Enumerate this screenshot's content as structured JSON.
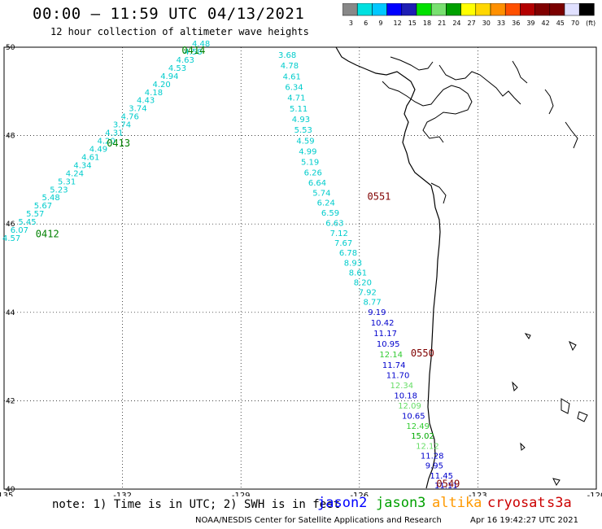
{
  "title": "00:00 – 11:59 UTC 04/13/2021",
  "subtitle": "12 hour collection of altimeter wave heights",
  "colorbar": {
    "colors": [
      "#888888",
      "#00e0e0",
      "#00c8ff",
      "#0000ff",
      "#1e1eb4",
      "#00e000",
      "#78e070",
      "#00a000",
      "#ffff00",
      "#ffd700",
      "#ff9000",
      "#ff5000",
      "#b40000",
      "#800000",
      "#7a0000",
      "#e0e0ff",
      "#000000"
    ],
    "labels": [
      "3",
      "6",
      "9",
      "12",
      "15",
      "18",
      "21",
      "24",
      "27",
      "30",
      "33",
      "36",
      "39",
      "42",
      "45",
      "70",
      "(ft)"
    ]
  },
  "axes": {
    "lon_labels": [
      "-135",
      "-132",
      "-129",
      "-126",
      "-123",
      "-120"
    ],
    "lat_labels": [
      "50",
      "48",
      "46",
      "44",
      "42",
      "40"
    ]
  },
  "chart_data": {
    "type": "scatter",
    "x_unit": "longitude",
    "y_unit": "latitude",
    "passes": [
      {
        "label": "0414",
        "lon": -130.5,
        "lat": 49.85,
        "color": "#008000"
      },
      {
        "label": "0413",
        "lon": -132.4,
        "lat": 47.75,
        "color": "#008000"
      },
      {
        "label": "0412",
        "lon": -134.2,
        "lat": 45.7,
        "color": "#008000"
      },
      {
        "label": "0551",
        "lon": -125.8,
        "lat": 46.55,
        "color": "#800000"
      },
      {
        "label": "0550",
        "lon": -124.7,
        "lat": 43.0,
        "color": "#800000"
      },
      {
        "label": "0549",
        "lon": -124.05,
        "lat": 40.05,
        "color": "#800000"
      }
    ],
    "track_west": {
      "values": [
        "4.48",
        "4.58",
        "4.63",
        "4.53",
        "4.94",
        "4.20",
        "4.18",
        "4.43",
        "3.74",
        "4.76",
        "3.74",
        "4.31",
        "4.20",
        "4.49",
        "4.61",
        "4.34",
        "4.24",
        "5.31",
        "5.23",
        "5.48",
        "5.67",
        "5.57",
        "5.45",
        "6.07",
        "4.57"
      ],
      "color": "#00cccc"
    },
    "track_east": {
      "points": [
        {
          "v": "3.68",
          "c": "#00cccc"
        },
        {
          "v": "4.78",
          "c": "#00cccc"
        },
        {
          "v": "4.61",
          "c": "#00cccc"
        },
        {
          "v": "6.34",
          "c": "#00cccc"
        },
        {
          "v": "4.71",
          "c": "#00cccc"
        },
        {
          "v": "5.11",
          "c": "#00cccc"
        },
        {
          "v": "4.93",
          "c": "#00cccc"
        },
        {
          "v": "5.53",
          "c": "#00cccc"
        },
        {
          "v": "4.59",
          "c": "#00cccc"
        },
        {
          "v": "4.99",
          "c": "#00cccc"
        },
        {
          "v": "5.19",
          "c": "#00cccc"
        },
        {
          "v": "6.26",
          "c": "#00cccc"
        },
        {
          "v": "6.64",
          "c": "#00cccc"
        },
        {
          "v": "5.74",
          "c": "#00cccc"
        },
        {
          "v": "6.24",
          "c": "#00cccc"
        },
        {
          "v": "6.59",
          "c": "#00cccc"
        },
        {
          "v": "6.63",
          "c": "#00cccc"
        },
        {
          "v": "7.12",
          "c": "#00cccc"
        },
        {
          "v": "7.67",
          "c": "#00cccc"
        },
        {
          "v": "6.78",
          "c": "#00cccc"
        },
        {
          "v": "8.93",
          "c": "#00cccc"
        },
        {
          "v": "8.61",
          "c": "#00cccc"
        },
        {
          "v": "8.20",
          "c": "#00cccc"
        },
        {
          "v": "7.92",
          "c": "#00cccc"
        },
        {
          "v": "8.77",
          "c": "#00cccc"
        },
        {
          "v": "9.19",
          "c": "#0000cc"
        },
        {
          "v": "10.42",
          "c": "#0000cc"
        },
        {
          "v": "11.17",
          "c": "#0000cc"
        },
        {
          "v": "10.95",
          "c": "#0000cc"
        },
        {
          "v": "12.14",
          "c": "#33cc33"
        },
        {
          "v": "11.74",
          "c": "#0000cc"
        },
        {
          "v": "11.70",
          "c": "#0000cc"
        },
        {
          "v": "12.34",
          "c": "#66dd66"
        },
        {
          "v": "10.18",
          "c": "#0000cc"
        },
        {
          "v": "12.09",
          "c": "#66dd66"
        },
        {
          "v": "10.65",
          "c": "#0000cc"
        },
        {
          "v": "12.49",
          "c": "#33cc33"
        },
        {
          "v": "15.02",
          "c": "#00aa00"
        },
        {
          "v": "12.12",
          "c": "#66dd66"
        },
        {
          "v": "11.28",
          "c": "#0000cc"
        },
        {
          "v": "9.95",
          "c": "#0000cc"
        },
        {
          "v": "11.45",
          "c": "#0000cc"
        },
        {
          "v": "11.11",
          "c": "#0000cc"
        }
      ]
    }
  },
  "footer": {
    "note": "note: 1) Time is in UTC; 2) SWH is in feet",
    "satellites": [
      {
        "name": "jason2",
        "color": "#0000ff"
      },
      {
        "name": "jason3",
        "color": "#00a000"
      },
      {
        "name": "altika",
        "color": "#ff9900"
      },
      {
        "name": "cryosat",
        "color": "#cc0000"
      },
      {
        "name": "s3a",
        "color": "#cc0000"
      }
    ],
    "credit": "NOAA/NESDIS Center for Satellite Applications and Research",
    "timestamp": "Apr 16 19:42:27 UTC 2021"
  }
}
